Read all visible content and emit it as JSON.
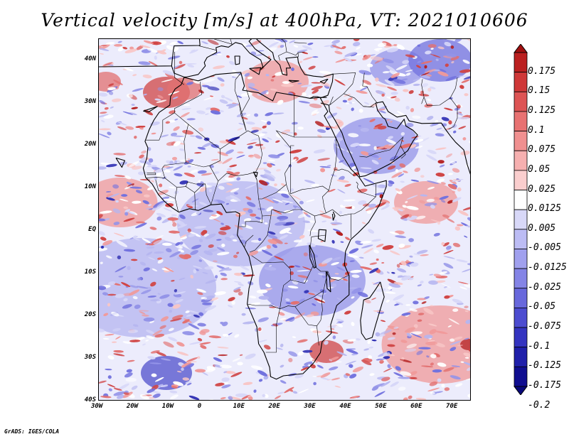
{
  "title": "Vertical velocity [m/s] at 400hPa, VT: 2021010606",
  "credit": "GrADS: IGES/COLA",
  "map": {
    "variable": "Vertical velocity",
    "units": "m/s",
    "level": "400hPa",
    "valid_time": "2021010606",
    "lon_range": [
      -30,
      75
    ],
    "lat_range": [
      -40,
      45
    ]
  },
  "axes": {
    "lat_ticks": [
      "40N",
      "30N",
      "20N",
      "10N",
      "EQ",
      "10S",
      "20S",
      "30S",
      "40S"
    ],
    "lon_ticks": [
      "30W",
      "20W",
      "10W",
      "0",
      "10E",
      "20E",
      "30E",
      "40E",
      "50E",
      "60E",
      "70E"
    ]
  },
  "colorbar": {
    "labels": [
      "0.175",
      "0.15",
      "0.125",
      "0.1",
      "0.075",
      "0.05",
      "0.025",
      "0.0125",
      "0.005",
      "-0.005",
      "-0.0125",
      "-0.025",
      "-0.05",
      "-0.075",
      "-0.1",
      "-0.125",
      "-0.175",
      "-0.2"
    ],
    "colors": [
      "#a01010",
      "#bb2020",
      "#cf3838",
      "#dd5454",
      "#e87272",
      "#f09090",
      "#f6b0b0",
      "#facece",
      "#ffffff",
      "#d8d8f8",
      "#bcbcf4",
      "#a0a0ee",
      "#8484e6",
      "#6868dc",
      "#4c4cd0",
      "#3434c0",
      "#2020aa",
      "#100e90",
      "#08087a"
    ]
  }
}
